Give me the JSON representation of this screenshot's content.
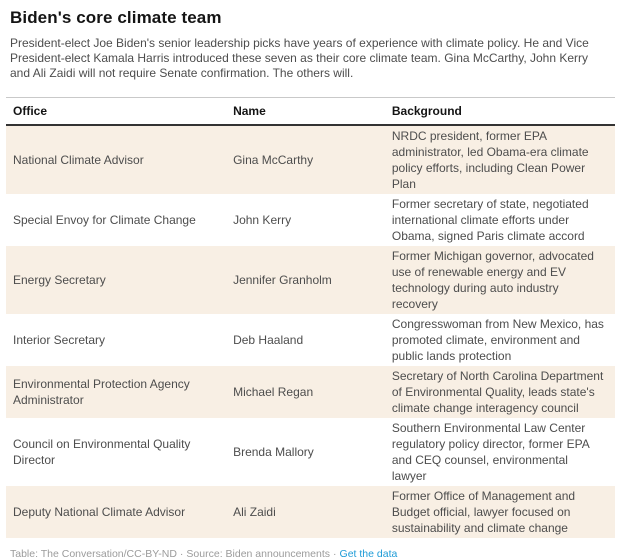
{
  "header": {
    "title": "Biden's core climate team",
    "description": "President-elect Joe Biden's senior leadership picks have years of experience with climate policy. He and Vice President-elect Kamala Harris introduced these seven as their core climate team. Gina McCarthy, John Kerry and Ali Zaidi will not require Senate confirmation. The others will."
  },
  "table": {
    "columns": [
      "Office",
      "Name",
      "Background"
    ],
    "rows": [
      {
        "office": "National Climate Advisor",
        "name": "Gina McCarthy",
        "background": "NRDC president, former EPA administrator, led Obama-era climate policy efforts, including Clean Power Plan"
      },
      {
        "office": "Special Envoy for Climate Change",
        "name": "John Kerry",
        "background": "Former secretary of state, negotiated international climate efforts under Obama, signed Paris climate accord"
      },
      {
        "office": "Energy Secretary",
        "name": "Jennifer Granholm",
        "background": "Former Michigan governor, advocated use of renewable energy and EV technology during auto industry recovery"
      },
      {
        "office": "Interior Secretary",
        "name": "Deb Haaland",
        "background": "Congresswoman from New Mexico, has promoted climate, environment and public lands protection"
      },
      {
        "office": "Environmental Protection Agency Administrator",
        "name": "Michael Regan",
        "background": "Secretary of North Carolina Department of Environmental Quality, leads state's climate change interagency council"
      },
      {
        "office": "Council on Environmental Quality Director",
        "name": "Brenda Mallory",
        "background": "Southern Environmental Law Center regulatory policy director, former EPA and CEQ counsel, environmental lawyer"
      },
      {
        "office": "Deputy National Climate Advisor",
        "name": "Ali Zaidi",
        "background": "Former Office of Management and Budget official, lawyer focused on sustainability and climate change"
      }
    ]
  },
  "footer": {
    "attribution": "Table: The Conversation/CC-BY-ND",
    "separator": "·",
    "source": "Source: Biden announcements",
    "link_label": "Get the data"
  },
  "colors": {
    "row_alt_background": "#f8efe4",
    "link_blue": "#1d9bd7",
    "header_border_dark": "#333333",
    "header_border_light": "#c9c9c9"
  }
}
